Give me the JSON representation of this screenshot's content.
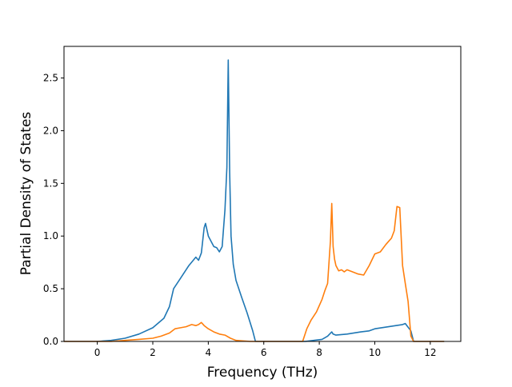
{
  "chart_data": {
    "type": "line",
    "title": "",
    "xlabel": "Frequency (THz)",
    "ylabel": "Partial Density of States",
    "xlim": [
      -1.2,
      13.1
    ],
    "ylim": [
      0,
      2.8
    ],
    "xticks": [
      0,
      2,
      4,
      6,
      8,
      10,
      12
    ],
    "xtick_labels": [
      "0",
      "2",
      "4",
      "6",
      "8",
      "10",
      "12"
    ],
    "yticks": [
      0,
      0.5,
      1.0,
      1.5,
      2.0,
      2.5
    ],
    "ytick_labels": [
      "0.0",
      "0.5",
      "1.0",
      "1.5",
      "2.0",
      "2.5"
    ],
    "grid": false,
    "legend": "none",
    "series": [
      {
        "color": "#1f77b4",
        "x": [
          -1.2,
          0.0,
          0.5,
          1.0,
          1.5,
          2.0,
          2.4,
          2.6,
          2.75,
          3.0,
          3.3,
          3.55,
          3.65,
          3.75,
          3.85,
          3.9,
          4.0,
          4.1,
          4.2,
          4.3,
          4.4,
          4.5,
          4.6,
          4.67,
          4.72,
          4.77,
          4.82,
          4.9,
          5.0,
          5.2,
          5.4,
          5.6,
          5.7,
          5.75,
          7.5,
          7.8,
          8.1,
          8.3,
          8.45,
          8.5,
          8.6,
          9.0,
          9.5,
          9.8,
          10.0,
          10.5,
          11.0,
          11.1,
          11.3,
          11.35,
          11.4,
          12.5
        ],
        "y": [
          0.0,
          0.0,
          0.01,
          0.03,
          0.07,
          0.13,
          0.22,
          0.33,
          0.5,
          0.6,
          0.72,
          0.8,
          0.77,
          0.84,
          1.08,
          1.12,
          1.0,
          0.95,
          0.9,
          0.89,
          0.85,
          0.9,
          1.25,
          1.65,
          2.67,
          1.6,
          1.0,
          0.73,
          0.58,
          0.42,
          0.27,
          0.1,
          0.0,
          0.0,
          0.0,
          0.01,
          0.02,
          0.05,
          0.09,
          0.07,
          0.06,
          0.07,
          0.09,
          0.1,
          0.12,
          0.14,
          0.16,
          0.17,
          0.1,
          0.05,
          0.0,
          0.0
        ]
      },
      {
        "color": "#ff7f0e",
        "x": [
          -1.2,
          0.5,
          1.0,
          1.5,
          2.0,
          2.3,
          2.6,
          2.8,
          3.0,
          3.2,
          3.4,
          3.55,
          3.65,
          3.75,
          3.85,
          4.0,
          4.2,
          4.4,
          4.6,
          4.8,
          5.0,
          5.5,
          6.0,
          7.4,
          7.55,
          7.7,
          7.9,
          8.1,
          8.2,
          8.3,
          8.4,
          8.45,
          8.5,
          8.55,
          8.6,
          8.7,
          8.8,
          8.9,
          9.0,
          9.2,
          9.4,
          9.6,
          9.8,
          10.0,
          10.2,
          10.4,
          10.5,
          10.6,
          10.7,
          10.8,
          10.9,
          11.0,
          11.1,
          11.2,
          11.3,
          11.4,
          12.5
        ],
        "y": [
          0.0,
          0.0,
          0.01,
          0.02,
          0.03,
          0.05,
          0.08,
          0.12,
          0.13,
          0.14,
          0.16,
          0.15,
          0.16,
          0.18,
          0.15,
          0.12,
          0.09,
          0.07,
          0.06,
          0.03,
          0.01,
          0.0,
          0.0,
          0.0,
          0.12,
          0.2,
          0.28,
          0.4,
          0.48,
          0.55,
          0.95,
          1.31,
          0.9,
          0.78,
          0.72,
          0.67,
          0.68,
          0.66,
          0.68,
          0.66,
          0.64,
          0.63,
          0.72,
          0.83,
          0.85,
          0.92,
          0.95,
          0.98,
          1.05,
          1.28,
          1.27,
          0.72,
          0.55,
          0.38,
          0.05,
          0.0,
          0.0
        ]
      }
    ]
  }
}
